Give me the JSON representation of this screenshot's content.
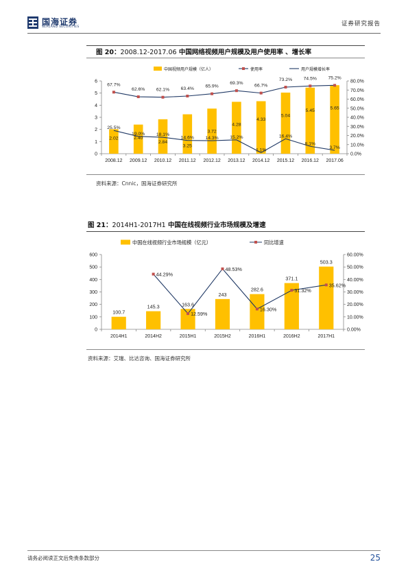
{
  "header": {
    "logo_cn": "国海证券",
    "logo_en": "SEALAND SECURITIES",
    "report_type": "证券研究报告"
  },
  "figure20": {
    "label": "图 20：",
    "range": "2008.12-2017.06",
    "title": "中国网络视频用户规模及用户使用率 、增长率",
    "source": "资料来源：Cnnic，国海证券研究所"
  },
  "figure21": {
    "label": "图 21：",
    "range": "2014H1-2017H1",
    "title": "中国在线视频行业市场规模及增速",
    "source": "资料来源：艾瑞、比达咨询、国海证券研究所"
  },
  "footer": {
    "disclaimer": "请务必阅读正文后免责条款部分",
    "page_number": "25"
  },
  "colors": {
    "bar": "#FFC000",
    "line_dark": "#1F3864",
    "marker_red": "#C0504D",
    "line_gray": "#7F7F7F"
  },
  "chart_data": [
    {
      "type": "bar",
      "categories": [
        "2008.12",
        "2009.12",
        "2010.12",
        "2011.12",
        "2012.12",
        "2013.12",
        "2014.12",
        "2015.12",
        "2016.12",
        "2017.06"
      ],
      "series": [
        {
          "name": "中国视频用户规模（亿人）",
          "axis": "left",
          "type": "bar",
          "values": [
            2.02,
            2.4,
            2.84,
            3.25,
            3.72,
            4.28,
            4.33,
            5.04,
            5.45,
            5.65
          ],
          "labels": [
            "2.02",
            "2.40",
            "2.84",
            "3.25",
            "3.72",
            "4.28",
            "4.33",
            "5.04",
            "5.45",
            "5.65"
          ]
        },
        {
          "name": "使用率",
          "axis": "right",
          "type": "line",
          "values": [
            67.7,
            62.6,
            62.1,
            63.4,
            65.9,
            69.3,
            66.7,
            73.2,
            74.5,
            75.2
          ],
          "labels": [
            "67.7%",
            "62.6%",
            "62.1%",
            "63.4%",
            "65.9%",
            "69.3%",
            "66.7%",
            "73.2%",
            "74.5%",
            "75.2%"
          ]
        },
        {
          "name": "用户规模增长率",
          "axis": "right",
          "type": "line",
          "values": [
            25.5,
            19.0,
            18.1,
            14.6,
            14.3,
            15.2,
            1.1,
            16.4,
            8.1,
            3.7
          ],
          "labels": [
            "25.5%",
            "19.0%",
            "18.1%",
            "14.6%",
            "14.3%",
            "15.2%",
            "1.1%",
            "16.4%",
            "8.1%",
            "3.7%"
          ]
        }
      ],
      "y_left": {
        "min": 0,
        "max": 6,
        "ticks": [
          "0",
          "1",
          "2",
          "3",
          "4",
          "5",
          "6"
        ]
      },
      "y_right": {
        "min": 0,
        "max": 80,
        "ticks": [
          "0.0%",
          "10.0%",
          "20.0%",
          "30.0%",
          "40.0%",
          "50.0%",
          "60.0%",
          "70.0%",
          "80.0%"
        ]
      },
      "legend_position": "top",
      "grid": false
    },
    {
      "type": "bar",
      "categories": [
        "2014H1",
        "2014H2",
        "2015H1",
        "2015H2",
        "2016H1",
        "2016H2",
        "2017H1"
      ],
      "series": [
        {
          "name": "中国在线视频行业市场规模（亿元）",
          "axis": "left",
          "type": "bar",
          "values": [
            100.7,
            145.3,
            163.6,
            243,
            282.6,
            371.1,
            503.3
          ],
          "labels": [
            "100.7",
            "145.3",
            "163.6",
            "243",
            "282.6",
            "371.1",
            "503.3"
          ]
        },
        {
          "name": "同比增速",
          "axis": "right",
          "type": "line",
          "values": [
            null,
            44.29,
            12.59,
            48.53,
            16.3,
            31.32,
            35.62
          ],
          "labels": [
            "",
            "44.29%",
            "12.59%",
            "48.53%",
            "16.30%",
            "31.32%",
            "35.62%"
          ]
        }
      ],
      "y_left": {
        "min": 0,
        "max": 600,
        "ticks": [
          "0",
          "100",
          "200",
          "300",
          "400",
          "500",
          "600"
        ]
      },
      "y_right": {
        "min": 0,
        "max": 60,
        "ticks": [
          "0.00%",
          "10.00%",
          "20.00%",
          "30.00%",
          "40.00%",
          "50.00%",
          "60.00%"
        ]
      },
      "legend_position": "top",
      "grid": false
    }
  ]
}
